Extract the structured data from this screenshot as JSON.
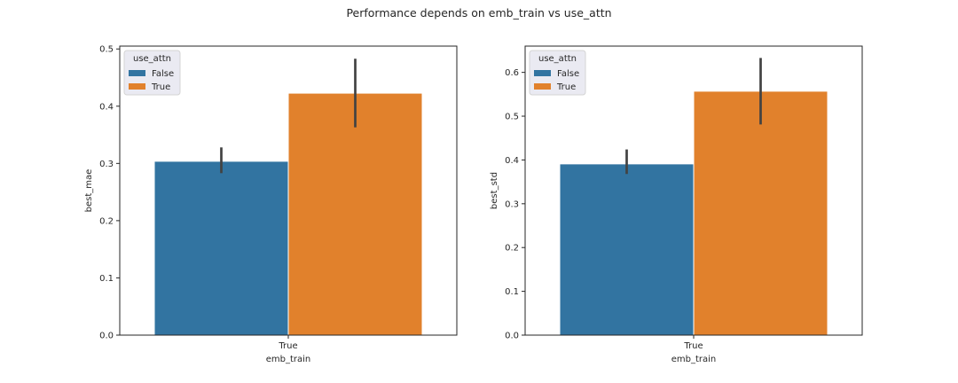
{
  "figure": {
    "title": "Performance depends on emb_train vs use_attn"
  },
  "colors": {
    "false_series": "#3274a1",
    "true_series": "#e1812c",
    "errorbar": "#424242",
    "axis": "#262626",
    "legend_bg": "#eaeaf2"
  },
  "chart_data": [
    {
      "type": "bar",
      "categories": [
        "True"
      ],
      "xlabel": "emb_train",
      "ylabel": "best_mae",
      "ylim": [
        0,
        0.505
      ],
      "yticks": [
        "0.0",
        "0.1",
        "0.2",
        "0.3",
        "0.4",
        "0.5"
      ],
      "yticks_values": [
        0,
        0.1,
        0.2,
        0.3,
        0.4,
        0.5
      ],
      "grid": false,
      "legend": {
        "title": "use_attn",
        "placement": "top-left",
        "entries": [
          "False",
          "True"
        ]
      },
      "series": [
        {
          "name": "False",
          "values": [
            0.303
          ],
          "ci": [
            [
              0.283,
              0.328
            ]
          ]
        },
        {
          "name": "True",
          "values": [
            0.422
          ],
          "ci": [
            [
              0.363,
              0.483
            ]
          ]
        }
      ]
    },
    {
      "type": "bar",
      "categories": [
        "True"
      ],
      "xlabel": "emb_train",
      "ylabel": "best_std",
      "ylim": [
        0,
        0.66
      ],
      "yticks": [
        "0.0",
        "0.1",
        "0.2",
        "0.3",
        "0.4",
        "0.5",
        "0.6"
      ],
      "yticks_values": [
        0,
        0.1,
        0.2,
        0.3,
        0.4,
        0.5,
        0.6
      ],
      "grid": false,
      "legend": {
        "title": "use_attn",
        "placement": "top-left",
        "entries": [
          "False",
          "True"
        ]
      },
      "series": [
        {
          "name": "False",
          "values": [
            0.39
          ],
          "ci": [
            [
              0.368,
              0.424
            ]
          ]
        },
        {
          "name": "True",
          "values": [
            0.556
          ],
          "ci": [
            [
              0.481,
              0.633
            ]
          ]
        }
      ]
    }
  ]
}
